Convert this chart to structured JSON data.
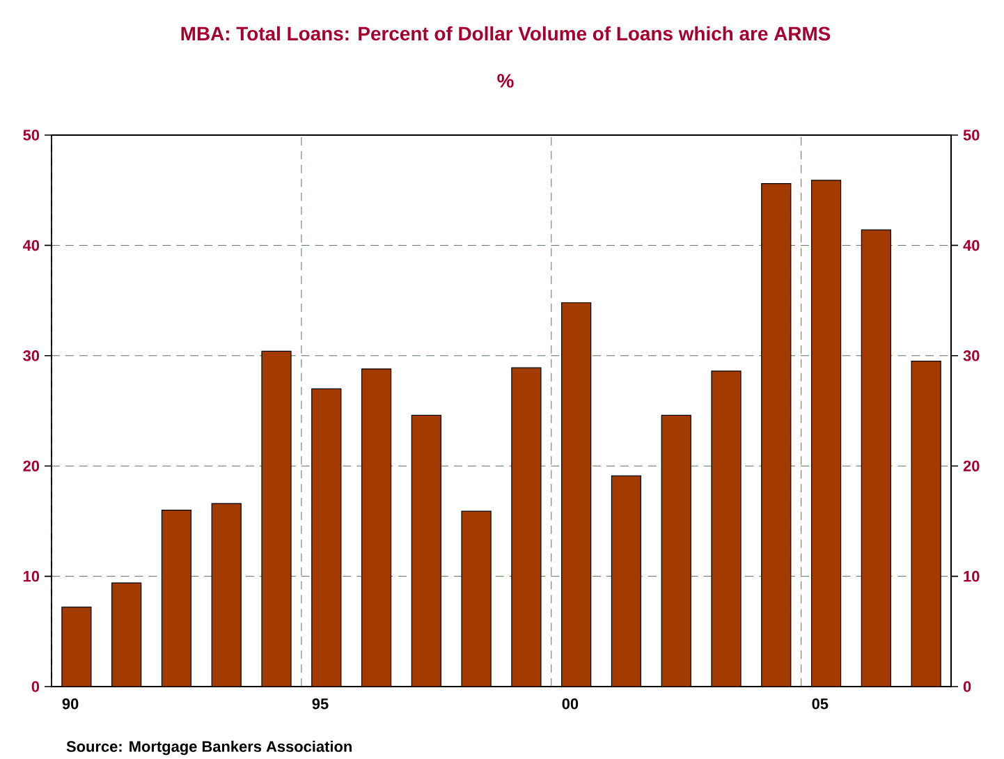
{
  "chart_data": {
    "type": "bar",
    "title": "MBA: Total Loans: Percent of Dollar Volume of Loans which are ARMS",
    "subtitle": "%",
    "categories": [
      "90",
      null,
      null,
      null,
      null,
      "95",
      null,
      null,
      null,
      null,
      "00",
      null,
      null,
      null,
      null,
      "05",
      null,
      null
    ],
    "values": [
      7.2,
      9.4,
      16.0,
      16.6,
      30.4,
      27.0,
      28.8,
      24.6,
      15.9,
      28.9,
      34.8,
      19.1,
      24.6,
      28.6,
      45.6,
      45.9,
      41.4,
      29.5
    ],
    "color": "#a33a00",
    "ylim": [
      0,
      50
    ],
    "yticks": [
      0,
      10,
      20,
      30,
      40,
      50
    ],
    "y2lim": [
      0,
      50
    ],
    "y2ticks": [
      0,
      10,
      20,
      30,
      40,
      50
    ],
    "grid": true,
    "annotations": [
      "Source:  Mortgage Bankers Association"
    ]
  }
}
